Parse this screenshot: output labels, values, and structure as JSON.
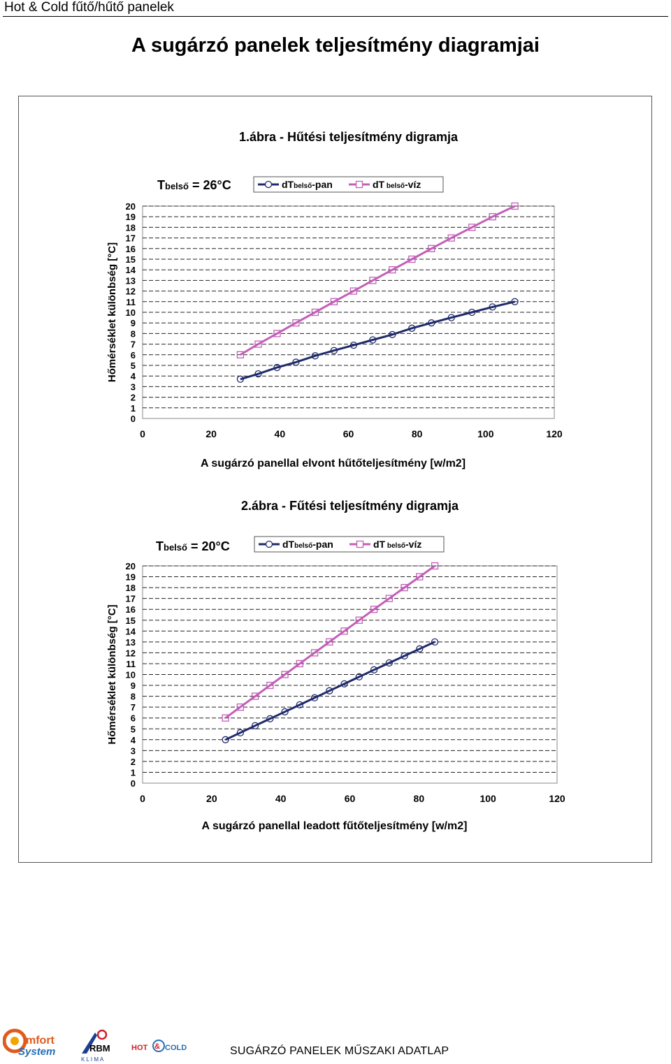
{
  "header": {
    "text": "Hot & Cold fűtő/hűtő panelek"
  },
  "page_title": "A sugárzó panelek teljesítmény diagramjai",
  "footer": {
    "caption": "SUGÁRZÓ PANELEK MŰSZAKI ADATLAP",
    "logos": [
      {
        "name": "comfort-system-logo",
        "line1": "mfort",
        "line2": "System",
        "initial": "C"
      },
      {
        "name": "rbm-klima-logo",
        "line1": "RBM",
        "line2": "K L I M A"
      },
      {
        "name": "hot-cold-logo",
        "word1": "HOT",
        "word2": "COLD",
        "mark": "&"
      }
    ]
  },
  "colors": {
    "series_pan": "#1f2a6b",
    "series_viz": "#c35fb8",
    "grid": "#222222",
    "axis": "#888888",
    "text": "#000000"
  },
  "chart_data": [
    {
      "type": "line",
      "title": "1.ábra - Hűtési teljesítmény digramja",
      "condition_label": {
        "main": "T",
        "sub": "belső",
        "rest": " = 26°C"
      },
      "xlabel": "A sugárzó panellal elvont hűtőteljesítmény [w/m2]",
      "ylabel": "Hőmérséklet különbség [°C]",
      "xlim": [
        0,
        120
      ],
      "ylim": [
        0,
        20
      ],
      "x_ticks": [
        "0",
        "20",
        "40",
        "60",
        "80",
        "100",
        "120"
      ],
      "y_ticks": [
        "0",
        "1",
        "2",
        "3",
        "4",
        "5",
        "6",
        "7",
        "8",
        "9",
        "10",
        "11",
        "12",
        "13",
        "14",
        "15",
        "16",
        "17",
        "18",
        "19",
        "20"
      ],
      "grid": "horizontal dashed",
      "legend_position": "top",
      "series": [
        {
          "name": {
            "main": "dT",
            "sub": "belső",
            "rest": "-pan"
          },
          "marker": "circle",
          "color_key": "series_pan",
          "x": [
            28.5,
            33.7,
            39.2,
            44.7,
            50.3,
            55.8,
            61.5,
            67.1,
            72.8,
            78.5,
            84.2,
            90.0,
            96.0,
            102.0,
            108.5
          ],
          "y": [
            3.7,
            4.2,
            4.8,
            5.3,
            5.9,
            6.4,
            6.9,
            7.4,
            7.9,
            8.5,
            9.0,
            9.5,
            10.0,
            10.5,
            11.0
          ]
        },
        {
          "name": {
            "main": "dT",
            "sub": " belső",
            "rest": "-víz"
          },
          "marker": "square",
          "color_key": "series_viz",
          "x": [
            28.5,
            33.7,
            39.2,
            44.7,
            50.3,
            55.8,
            61.5,
            67.1,
            72.8,
            78.5,
            84.2,
            90.0,
            96.0,
            102.0,
            108.5
          ],
          "y": [
            6,
            7,
            8,
            9,
            10,
            11,
            12,
            13,
            14,
            15,
            16,
            17,
            18,
            19,
            20
          ]
        }
      ]
    },
    {
      "type": "line",
      "title": "2.ábra - Fűtési teljesítmény digramja",
      "condition_label": {
        "main": "T",
        "sub": "belső",
        "rest": " = 20°C"
      },
      "xlabel": "A sugárzó panellal leadott fűtőteljesítmény [w/m2]",
      "ylabel": "Hőmérséklet különbség [°C]",
      "xlim": [
        0,
        120
      ],
      "ylim": [
        0,
        20
      ],
      "x_ticks": [
        "0",
        "20",
        "40",
        "60",
        "80",
        "100",
        "120"
      ],
      "y_ticks": [
        "0",
        "1",
        "2",
        "3",
        "4",
        "5",
        "6",
        "7",
        "8",
        "9",
        "10",
        "11",
        "12",
        "13",
        "14",
        "15",
        "16",
        "17",
        "18",
        "19",
        "20"
      ],
      "grid": "horizontal dashed",
      "legend_position": "top",
      "series": [
        {
          "name": {
            "main": "dT",
            "sub": "belső",
            "rest": "-pan"
          },
          "marker": "circle",
          "color_key": "series_pan",
          "x": [
            24.0,
            28.3,
            32.6,
            36.9,
            41.2,
            45.5,
            49.8,
            54.1,
            58.4,
            62.7,
            67.0,
            71.4,
            75.8,
            80.2,
            84.6
          ],
          "y": [
            4.0,
            4.64,
            5.29,
            5.93,
            6.57,
            7.21,
            7.86,
            8.5,
            9.14,
            9.79,
            10.43,
            11.07,
            11.71,
            12.36,
            13.0
          ]
        },
        {
          "name": {
            "main": "dT",
            "sub": " belső",
            "rest": "-víz"
          },
          "marker": "square",
          "color_key": "series_viz",
          "x": [
            24.0,
            28.3,
            32.6,
            36.9,
            41.2,
            45.5,
            49.8,
            54.1,
            58.4,
            62.7,
            67.0,
            71.4,
            75.8,
            80.2,
            84.6
          ],
          "y": [
            6,
            7,
            8,
            9,
            10,
            11,
            12,
            13,
            14,
            15,
            16,
            17,
            18,
            19,
            20
          ]
        }
      ]
    }
  ]
}
